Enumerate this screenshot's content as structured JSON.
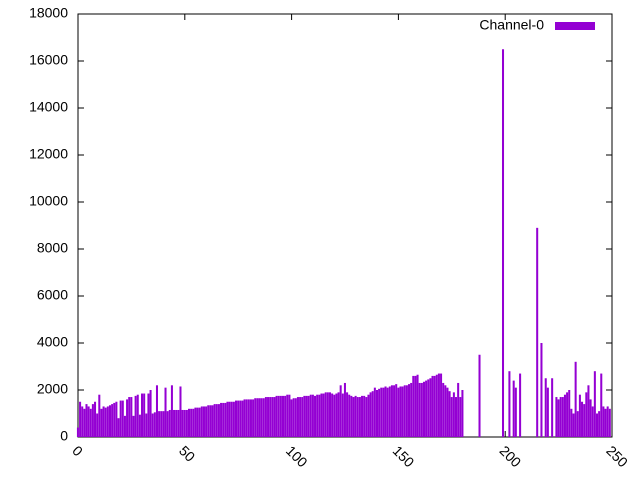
{
  "chart_data": {
    "type": "bar",
    "series": [
      {
        "name": "Channel-0",
        "color": "#9400d3",
        "values": [
          400,
          1500,
          1300,
          1200,
          1400,
          1300,
          1200,
          1400,
          1500,
          1000,
          1800,
          1200,
          1300,
          1250,
          1300,
          1350,
          1400,
          1450,
          1500,
          800,
          1550,
          1550,
          900,
          1600,
          1700,
          1700,
          900,
          1750,
          1800,
          950,
          1850,
          1850,
          1000,
          1850,
          2000,
          1000,
          1050,
          2200,
          1100,
          1100,
          1100,
          2100,
          1100,
          1150,
          2200,
          1150,
          1150,
          1150,
          2150,
          1150,
          1150,
          1150,
          1200,
          1200,
          1200,
          1250,
          1250,
          1250,
          1300,
          1300,
          1300,
          1350,
          1350,
          1350,
          1400,
          1400,
          1400,
          1450,
          1450,
          1450,
          1500,
          1500,
          1500,
          1500,
          1550,
          1550,
          1550,
          1550,
          1600,
          1600,
          1600,
          1600,
          1600,
          1650,
          1650,
          1650,
          1650,
          1650,
          1700,
          1700,
          1700,
          1700,
          1700,
          1750,
          1750,
          1750,
          1750,
          1750,
          1800,
          1800,
          1600,
          1650,
          1650,
          1700,
          1700,
          1700,
          1750,
          1750,
          1750,
          1800,
          1800,
          1750,
          1800,
          1800,
          1850,
          1850,
          1900,
          1900,
          1900,
          1850,
          1800,
          1850,
          1900,
          2200,
          1850,
          2300,
          1900,
          1800,
          1750,
          1700,
          1750,
          1700,
          1700,
          1750,
          1750,
          1700,
          1800,
          1900,
          1950,
          2100,
          2000,
          2050,
          2100,
          2100,
          2150,
          2100,
          2150,
          2200,
          2200,
          2250,
          2100,
          2150,
          2150,
          2200,
          2200,
          2250,
          2300,
          2600,
          2600,
          2650,
          2300,
          2300,
          2350,
          2400,
          2450,
          2500,
          2600,
          2600,
          2650,
          2700,
          2700,
          2300,
          2200,
          2100,
          1950,
          1700,
          1900,
          1700,
          2300,
          1700,
          2000,
          0,
          0,
          0,
          0,
          0,
          0,
          0,
          3500,
          0,
          0,
          0,
          0,
          0,
          0,
          0,
          0,
          0,
          0,
          16500,
          0,
          0,
          2800,
          0,
          2400,
          2100,
          0,
          2700,
          0,
          0,
          0,
          0,
          0,
          0,
          0,
          8900,
          0,
          4000,
          0,
          2500,
          2100,
          0,
          2500,
          0,
          1700,
          1600,
          1700,
          1700,
          1800,
          1900,
          2000,
          1200,
          1000,
          3200,
          1100,
          1800,
          1500,
          1400,
          1900,
          2200,
          1600,
          1300,
          2800,
          1000,
          1100,
          2700,
          1300,
          1200,
          1300,
          1200
        ]
      }
    ],
    "xlim": [
      0,
      250
    ],
    "xticks": [
      0,
      50,
      100,
      150,
      200,
      250
    ],
    "ylim": [
      0,
      18000
    ],
    "yticks": [
      0,
      2000,
      4000,
      6000,
      8000,
      10000,
      12000,
      14000,
      16000,
      18000
    ],
    "legend": "top-right"
  }
}
